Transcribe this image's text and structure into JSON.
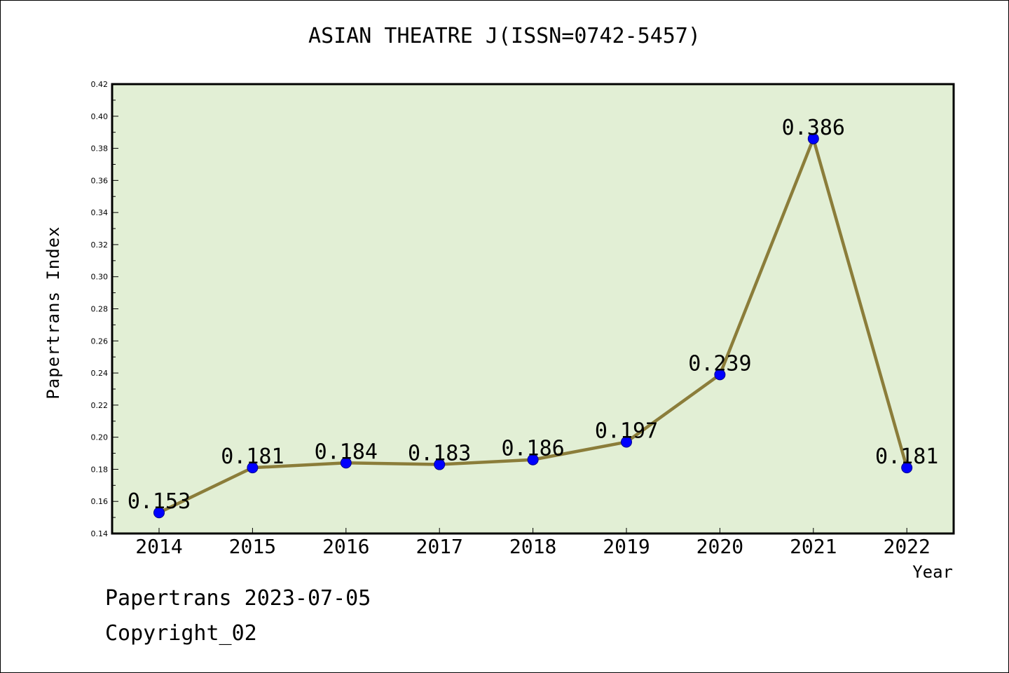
{
  "chart_data": {
    "type": "line",
    "title": "ASIAN THEATRE J(ISSN=0742-5457)",
    "xlabel": "Year",
    "ylabel": "Papertrans Index",
    "categories": [
      "2014",
      "2015",
      "2016",
      "2017",
      "2018",
      "2019",
      "2020",
      "2021",
      "2022"
    ],
    "series": [
      {
        "values": [
          0.153,
          0.181,
          0.184,
          0.183,
          0.186,
          0.197,
          0.239,
          0.386,
          0.181
        ],
        "data_labels": [
          "0.153",
          "0.181",
          "0.184",
          "0.183",
          "0.186",
          "0.197",
          "0.239",
          "0.386",
          "0.181"
        ],
        "line_color": "#8b7d3a",
        "marker_color": "#0000ff"
      }
    ],
    "ylim": [
      0.14,
      0.42
    ],
    "yticks": [
      "0.14",
      "0.16",
      "0.18",
      "0.20",
      "0.22",
      "0.24",
      "0.26",
      "0.28",
      "0.30",
      "0.32",
      "0.34",
      "0.36",
      "0.38",
      "0.40",
      "0.42"
    ],
    "plot_background": "#e2efd5",
    "grid": false,
    "legend": "none"
  },
  "footer": {
    "date_text": "Papertrans 2023-07-05",
    "copyright_text": "Copyright_02"
  }
}
